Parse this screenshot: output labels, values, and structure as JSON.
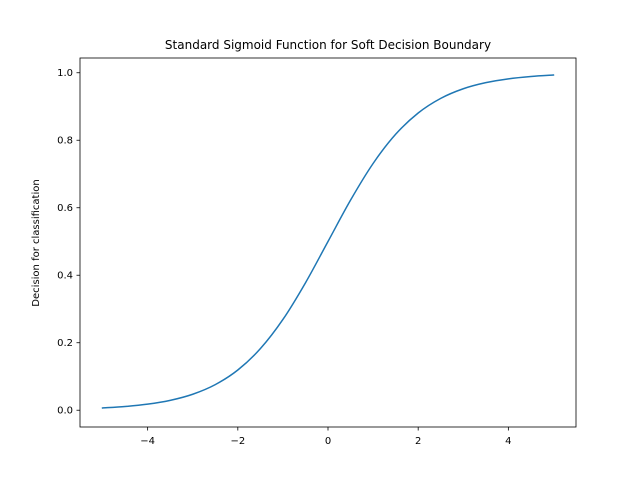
{
  "chart_data": {
    "type": "line",
    "title": "Standard Sigmoid Function for Soft Decision Boundary",
    "xlabel": "",
    "ylabel": "Decision for classification",
    "xlim": [
      -5.5,
      5.5
    ],
    "ylim": [
      -0.0497,
      1.0437
    ],
    "xticks": [
      -4,
      -2,
      0,
      2,
      4
    ],
    "xtick_labels": [
      "−4",
      "−2",
      "0",
      "2",
      "4"
    ],
    "yticks": [
      0.0,
      0.2,
      0.4,
      0.6,
      0.8,
      1.0
    ],
    "ytick_labels": [
      "0.0",
      "0.2",
      "0.4",
      "0.6",
      "0.8",
      "1.0"
    ],
    "grid": false,
    "series": [
      {
        "color": "#1f77b4",
        "x": [
          -5,
          -4.5,
          -4,
          -3.5,
          -3,
          -2.5,
          -2,
          -1.5,
          -1,
          -0.5,
          0,
          0.5,
          1,
          1.5,
          2,
          2.5,
          3,
          3.5,
          4,
          4.5,
          5
        ],
        "y": [
          0.0067,
          0.011,
          0.018,
          0.0293,
          0.0474,
          0.0759,
          0.1192,
          0.1824,
          0.2689,
          0.3775,
          0.5,
          0.6225,
          0.7311,
          0.8176,
          0.8808,
          0.9241,
          0.9526,
          0.9707,
          0.982,
          0.989,
          0.9933
        ]
      }
    ]
  }
}
